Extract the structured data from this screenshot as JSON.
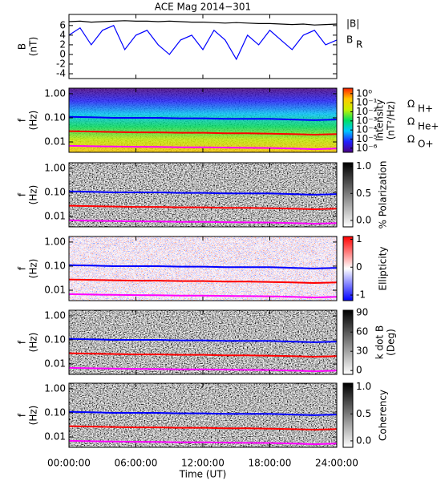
{
  "chart_data": [
    {
      "type": "line",
      "title": "ACE Mag 2014−301",
      "ylabel": [
        "B",
        "(nT)"
      ],
      "ylim": [
        -5,
        8.3
      ],
      "yticks": [
        -4,
        -2,
        0,
        2,
        4,
        6
      ],
      "x": [
        0,
        1,
        2,
        3,
        4,
        5,
        6,
        7,
        8,
        9,
        10,
        11,
        12,
        13,
        14,
        15,
        16,
        17,
        18,
        19,
        20,
        21,
        22,
        23,
        24
      ],
      "series": [
        {
          "name": "|B|",
          "color": "#000000",
          "values": [
            6.8,
            6.9,
            6.7,
            6.8,
            6.9,
            7.0,
            6.9,
            6.9,
            6.8,
            6.9,
            6.8,
            6.7,
            6.7,
            6.6,
            6.5,
            6.6,
            6.5,
            6.4,
            6.4,
            6.3,
            6.2,
            6.3,
            6.1,
            6.2,
            6.3
          ]
        },
        {
          "name": "B",
          "name_subscript": "R",
          "color": "#0000ff",
          "values": [
            4,
            5.5,
            2,
            5,
            6,
            1,
            4,
            5,
            2,
            0,
            3,
            4,
            1,
            5,
            3,
            -1,
            4,
            2,
            5,
            3,
            1,
            4,
            5,
            2,
            3
          ]
        }
      ]
    },
    {
      "type": "spectrogram",
      "ylabel": [
        "f",
        "(Hz)"
      ],
      "log_y": true,
      "ylim": [
        0.0037,
        1.7
      ],
      "yticks": [
        {
          "value": 1,
          "label": "1.00"
        },
        {
          "value": 0.1,
          "label": "0.10"
        },
        {
          "value": 0.01,
          "label": "0.01"
        }
      ],
      "x": [
        0,
        2,
        4,
        6,
        8,
        10,
        12,
        14,
        16,
        18,
        20,
        22,
        24
      ],
      "series": [
        {
          "name": "Ω",
          "name_subscript": "H+",
          "color": "#0000ff",
          "values": [
            0.11,
            0.105,
            0.1,
            0.1,
            0.1,
            0.095,
            0.095,
            0.09,
            0.09,
            0.09,
            0.085,
            0.08,
            0.085
          ]
        },
        {
          "name": "Ω",
          "name_subscript": "He+",
          "color": "#ff0000",
          "values": [
            0.028,
            0.027,
            0.026,
            0.025,
            0.025,
            0.024,
            0.024,
            0.023,
            0.023,
            0.022,
            0.021,
            0.02,
            0.021
          ]
        },
        {
          "name": "Ω",
          "name_subscript": "O+",
          "color": "#ff00ff",
          "values": [
            0.0069,
            0.0066,
            0.0064,
            0.0063,
            0.0062,
            0.006,
            0.006,
            0.0058,
            0.0057,
            0.0056,
            0.0053,
            0.005,
            0.0053
          ]
        }
      ],
      "colorbar": {
        "label": [
          "Intensity",
          "(nT²/Hz)"
        ],
        "log": true,
        "lim": [
          3.5e-07,
          4
        ],
        "ticks": [
          {
            "value": 1,
            "label": "10⁰"
          },
          {
            "value": 0.1,
            "label": "10⁻¹"
          },
          {
            "value": 0.01,
            "label": "10⁻²"
          },
          {
            "value": 0.001,
            "label": "10⁻³"
          },
          {
            "value": 0.0001,
            "label": "10⁻⁴"
          },
          {
            "value": 1e-05,
            "label": "10⁻⁵"
          },
          {
            "value": 1e-06,
            "label": "10⁻⁶"
          }
        ],
        "colormap": [
          "#4b0082",
          "#2020ff",
          "#00c8ff",
          "#00e060",
          "#c8f000",
          "#ffc800",
          "#ff2000"
        ]
      }
    },
    {
      "type": "spectrogram",
      "ylabel": [
        "f",
        "(Hz)"
      ],
      "log_y": true,
      "ylim": [
        0.0037,
        1.7
      ],
      "yticks": [
        {
          "value": 1,
          "label": "1.00"
        },
        {
          "value": 0.1,
          "label": "0.10"
        },
        {
          "value": 0.01,
          "label": "0.01"
        }
      ],
      "x": [
        0,
        2,
        4,
        6,
        8,
        10,
        12,
        14,
        16,
        18,
        20,
        22,
        24
      ],
      "series": [
        {
          "color": "#0000ff",
          "values": [
            0.11,
            0.105,
            0.1,
            0.1,
            0.1,
            0.095,
            0.095,
            0.09,
            0.09,
            0.09,
            0.085,
            0.08,
            0.085
          ]
        },
        {
          "color": "#ff0000",
          "values": [
            0.028,
            0.027,
            0.026,
            0.025,
            0.025,
            0.024,
            0.024,
            0.023,
            0.023,
            0.022,
            0.021,
            0.02,
            0.021
          ]
        },
        {
          "color": "#ff00ff",
          "values": [
            0.0069,
            0.0066,
            0.0064,
            0.0063,
            0.0062,
            0.006,
            0.006,
            0.0058,
            0.0057,
            0.0056,
            0.0053,
            0.005,
            0.0053
          ]
        }
      ],
      "colorbar": {
        "label": [
          "% Polarization"
        ],
        "lim": [
          -0.12,
          1.07
        ],
        "ticks": [
          {
            "value": 0,
            "label": "0.0"
          },
          0.5,
          {
            "value": 1,
            "label": "1.0"
          }
        ],
        "colormap": [
          "#ffffff",
          "#000000"
        ]
      }
    },
    {
      "type": "spectrogram",
      "ylabel": [
        "f",
        "(Hz)"
      ],
      "log_y": true,
      "ylim": [
        0.0037,
        1.7
      ],
      "yticks": [
        {
          "value": 1,
          "label": "1.00"
        },
        {
          "value": 0.1,
          "label": "0.10"
        },
        {
          "value": 0.01,
          "label": "0.01"
        }
      ],
      "x": [
        0,
        2,
        4,
        6,
        8,
        10,
        12,
        14,
        16,
        18,
        20,
        22,
        24
      ],
      "series": [
        {
          "color": "#0000ff",
          "values": [
            0.11,
            0.105,
            0.1,
            0.1,
            0.1,
            0.095,
            0.095,
            0.09,
            0.09,
            0.09,
            0.085,
            0.08,
            0.085
          ]
        },
        {
          "color": "#ff0000",
          "values": [
            0.028,
            0.027,
            0.026,
            0.025,
            0.025,
            0.024,
            0.024,
            0.023,
            0.023,
            0.022,
            0.021,
            0.02,
            0.021
          ]
        },
        {
          "color": "#ff00ff",
          "values": [
            0.0069,
            0.0066,
            0.0064,
            0.0063,
            0.0062,
            0.006,
            0.006,
            0.0058,
            0.0057,
            0.0056,
            0.0053,
            0.005,
            0.0053
          ]
        }
      ],
      "colorbar": {
        "label": [
          "Ellipticity"
        ],
        "lim": [
          -1.2,
          1.1
        ],
        "ticks": [
          -1,
          0,
          1
        ],
        "colormap": [
          "#0000ff",
          "#ffffff",
          "#ff0000"
        ]
      }
    },
    {
      "type": "spectrogram",
      "ylabel": [
        "f",
        "(Hz)"
      ],
      "log_y": true,
      "ylim": [
        0.0037,
        1.7
      ],
      "yticks": [
        {
          "value": 1,
          "label": "1.00"
        },
        {
          "value": 0.1,
          "label": "0.10"
        },
        {
          "value": 0.01,
          "label": "0.01"
        }
      ],
      "x": [
        0,
        2,
        4,
        6,
        8,
        10,
        12,
        14,
        16,
        18,
        20,
        22,
        24
      ],
      "series": [
        {
          "color": "#0000ff",
          "values": [
            0.11,
            0.105,
            0.1,
            0.1,
            0.1,
            0.095,
            0.095,
            0.09,
            0.09,
            0.09,
            0.085,
            0.08,
            0.085
          ]
        },
        {
          "color": "#ff0000",
          "values": [
            0.028,
            0.027,
            0.026,
            0.025,
            0.025,
            0.024,
            0.024,
            0.023,
            0.023,
            0.022,
            0.021,
            0.02,
            0.021
          ]
        },
        {
          "color": "#ff00ff",
          "values": [
            0.0069,
            0.0066,
            0.0064,
            0.0063,
            0.0062,
            0.006,
            0.006,
            0.0058,
            0.0057,
            0.0056,
            0.0053,
            0.005,
            0.0053
          ]
        }
      ],
      "colorbar": {
        "label": [
          "k dot B",
          "(Deg)"
        ],
        "lim": [
          -6,
          94
        ],
        "ticks": [
          0,
          30,
          60,
          90
        ],
        "colormap": [
          "#ffffff",
          "#000000"
        ]
      }
    },
    {
      "type": "spectrogram",
      "ylabel": [
        "f",
        "(Hz)"
      ],
      "log_y": true,
      "ylim": [
        0.0037,
        1.7
      ],
      "yticks": [
        {
          "value": 1,
          "label": "1.00"
        },
        {
          "value": 0.1,
          "label": "0.10"
        },
        {
          "value": 0.01,
          "label": "0.01"
        }
      ],
      "x": [
        0,
        2,
        4,
        6,
        8,
        10,
        12,
        14,
        16,
        18,
        20,
        22,
        24
      ],
      "series": [
        {
          "color": "#0000ff",
          "values": [
            0.11,
            0.105,
            0.1,
            0.1,
            0.1,
            0.095,
            0.095,
            0.09,
            0.09,
            0.09,
            0.085,
            0.08,
            0.085
          ]
        },
        {
          "color": "#ff0000",
          "values": [
            0.028,
            0.027,
            0.026,
            0.025,
            0.025,
            0.024,
            0.024,
            0.023,
            0.023,
            0.022,
            0.021,
            0.02,
            0.021
          ]
        },
        {
          "color": "#ff00ff",
          "values": [
            0.0069,
            0.0066,
            0.0064,
            0.0063,
            0.0062,
            0.006,
            0.006,
            0.0058,
            0.0057,
            0.0056,
            0.0053,
            0.005,
            0.0053
          ]
        }
      ],
      "colorbar": {
        "label": [
          "Coherency"
        ],
        "lim": [
          -0.12,
          1.07
        ],
        "ticks": [
          {
            "value": 0,
            "label": "0.0"
          },
          0.5,
          {
            "value": 1,
            "label": "1.0"
          }
        ],
        "colormap": [
          "#ffffff",
          "#000000"
        ]
      },
      "xlabel": "Time (UT)",
      "xlim": [
        0,
        24
      ],
      "xticks": [
        {
          "value": 0,
          "label": "00:00:00"
        },
        {
          "value": 6,
          "label": "06:00:00"
        },
        {
          "value": 12,
          "label": "12:00:00"
        },
        {
          "value": 18,
          "label": "18:00:00"
        },
        {
          "value": 24,
          "label": "24:00:00"
        }
      ]
    }
  ]
}
